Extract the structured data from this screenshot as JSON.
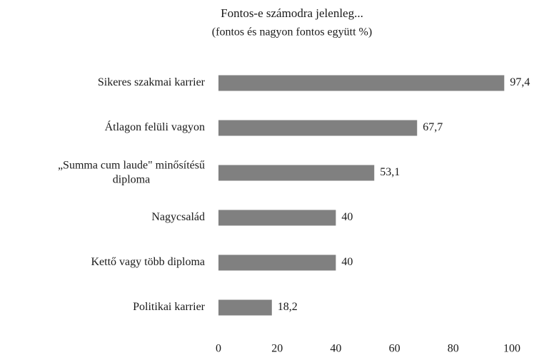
{
  "chart_data": {
    "type": "barh",
    "title": "Fontos-e számodra jelenleg...",
    "subtitle": "(fontos és nagyon fontos együtt %)",
    "categories": [
      "Sikeres szakmai karrier",
      "Átlagon felüli vagyon",
      "„Summa cum laude\" minősítésű diploma",
      "Nagycsalád",
      "Kettő vagy több diploma",
      "Politikai karrier"
    ],
    "values": [
      97.4,
      67.7,
      53.1,
      40,
      40,
      18.2
    ],
    "value_labels": [
      "97,4",
      "67,7",
      "53,1",
      "40",
      "40",
      "18,2"
    ],
    "color": "#808080",
    "xlim": [
      0,
      100
    ],
    "xticks": [
      0,
      20,
      40,
      60,
      80,
      100
    ],
    "grid": false
  }
}
